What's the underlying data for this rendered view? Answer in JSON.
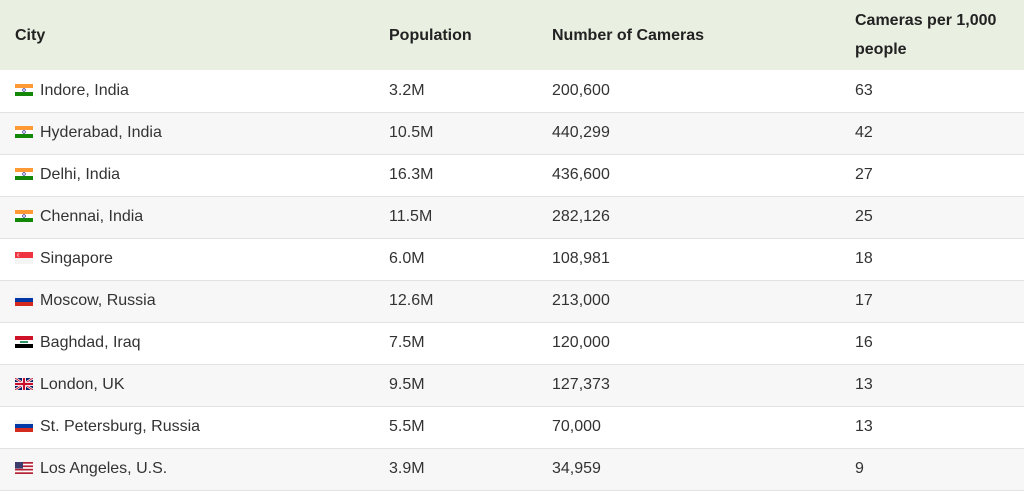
{
  "table": {
    "headers": [
      "City",
      "Population",
      "Number of Cameras",
      "Cameras per 1,000 people"
    ],
    "rows": [
      {
        "flag": "india-flag-icon",
        "city": "Indore, India",
        "population": "3.2M",
        "cameras": "200,600",
        "per1000": "63"
      },
      {
        "flag": "india-flag-icon",
        "city": "Hyderabad, India",
        "population": "10.5M",
        "cameras": "440,299",
        "per1000": "42"
      },
      {
        "flag": "india-flag-icon",
        "city": "Delhi, India",
        "population": "16.3M",
        "cameras": "436,600",
        "per1000": "27"
      },
      {
        "flag": "india-flag-icon",
        "city": "Chennai, India",
        "population": "11.5M",
        "cameras": "282,126",
        "per1000": "25"
      },
      {
        "flag": "singapore-flag-icon",
        "city": "Singapore",
        "population": "6.0M",
        "cameras": "108,981",
        "per1000": "18"
      },
      {
        "flag": "russia-flag-icon",
        "city": "Moscow, Russia",
        "population": "12.6M",
        "cameras": "213,000",
        "per1000": "17"
      },
      {
        "flag": "iraq-flag-icon",
        "city": "Baghdad, Iraq",
        "population": "7.5M",
        "cameras": "120,000",
        "per1000": "16"
      },
      {
        "flag": "uk-flag-icon",
        "city": "London, UK",
        "population": "9.5M",
        "cameras": "127,373",
        "per1000": "13"
      },
      {
        "flag": "russia-flag-icon",
        "city": "St. Petersburg, Russia",
        "population": "5.5M",
        "cameras": "70,000",
        "per1000": "13"
      },
      {
        "flag": "usa-flag-icon",
        "city": "Los Angeles, U.S.",
        "population": "3.9M",
        "cameras": "34,959",
        "per1000": "9"
      }
    ]
  }
}
